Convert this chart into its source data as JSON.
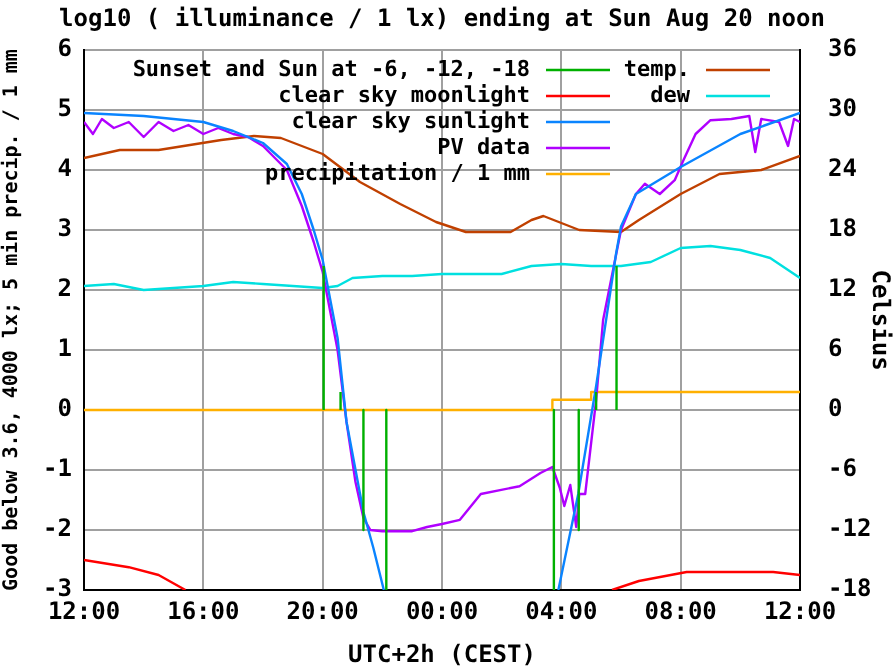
{
  "chart_data": {
    "type": "line",
    "title": "log10 ( illuminance / 1 lx) ending at Sun Aug 20 noon",
    "xlabel": "UTC+2h (CEST)",
    "ylabel": "Good below 3.6, 4000 lx; 5 min precip. / 1 mm",
    "y2label": "Celsius",
    "xlim": [
      "--08-19T12:00",
      "--08-20T12:00"
    ],
    "xticks": [
      {
        "value": "--08-19T12:00",
        "label": "12:00"
      },
      {
        "value": "--08-19T16:00",
        "label": "16:00"
      },
      {
        "value": "--08-19T20:00",
        "label": "20:00"
      },
      {
        "value": "--08-20T00:00",
        "label": "00:00"
      },
      {
        "value": "--08-20T04:00",
        "label": "04:00"
      },
      {
        "value": "--08-20T08:00",
        "label": "08:00"
      },
      {
        "value": "--08-20T12:00",
        "label": "12:00"
      }
    ],
    "ylim": [
      -3,
      6
    ],
    "yticks": [
      -3,
      -2,
      -1,
      0,
      1,
      2,
      3,
      4,
      5,
      6
    ],
    "y2lim": [
      -18,
      36
    ],
    "y2ticks": [
      -18,
      -12,
      -6,
      0,
      6,
      12,
      18,
      24,
      30,
      36
    ],
    "grid": true,
    "legend": "top",
    "marker": "none",
    "series": [
      {
        "name": "Sunset and Sun at -6, -12, -18",
        "color": "#00b000",
        "x": [
          "--08-19T20:02",
          "--08-19T20:02",
          null,
          "--08-19T20:36",
          "--08-19T20:36",
          null,
          "--08-19T21:22",
          "--08-19T21:22",
          null,
          "--08-19T22:08",
          "--08-19T22:08",
          null,
          "--08-20T03:45",
          "--08-20T03:45",
          null,
          "--08-20T04:35",
          "--08-20T04:35",
          null,
          "--08-20T05:10",
          "--08-20T05:10",
          null,
          "--08-20T05:51",
          "--08-20T05:51"
        ],
        "values": [
          0,
          2.4,
          null,
          0,
          0.3,
          null,
          0,
          -2,
          null,
          0,
          -3,
          null,
          0,
          -3,
          null,
          0,
          -2,
          null,
          0,
          0.3,
          null,
          0,
          2.4
        ]
      },
      {
        "name": "clear sky moonlight",
        "color": "#ff0000",
        "x": [
          "--08-19T12:00",
          "--08-19T13:30",
          "--08-19T14:30",
          "--08-19T15:24",
          null,
          "--08-20T05:42",
          "--08-20T06:36",
          "--08-20T08:12",
          "--08-20T11:06",
          "--08-20T12:00"
        ],
        "values": [
          -2.5,
          -2.62,
          -2.75,
          -3,
          null,
          -3,
          -2.85,
          -2.7,
          -2.7,
          -2.75
        ]
      },
      {
        "name": "clear sky sunlight",
        "color": "#0a84ff",
        "x": [
          "--08-19T12:00",
          "--08-19T14:00",
          "--08-19T16:00",
          "--08-19T17:00",
          "--08-19T18:00",
          "--08-19T18:48",
          "--08-19T19:18",
          "--08-19T19:42",
          "--08-19T20:00",
          "--08-19T20:30",
          "--08-19T20:48",
          "--08-19T21:22",
          "--08-19T21:42",
          "--08-19T22:03",
          null,
          "--08-20T03:54",
          "--08-20T04:34",
          "--08-20T05:10",
          "--08-20T05:50",
          "--08-20T06:00",
          "--08-20T06:30",
          "--08-20T08:00",
          "--08-20T10:00",
          "--08-20T12:00"
        ],
        "values": [
          4.95,
          4.9,
          4.8,
          4.65,
          4.45,
          4.1,
          3.6,
          3,
          2.5,
          1.2,
          -0.2,
          -1.7,
          -2.3,
          -3,
          null,
          -3,
          -1.4,
          0.4,
          2.6,
          3.06,
          3.6,
          4.05,
          4.6,
          4.95
        ]
      },
      {
        "name": "PV data",
        "color": "#b000ff",
        "x": [
          "--08-19T12:00",
          "--08-19T12:18",
          "--08-19T12:36",
          "--08-19T13:00",
          "--08-19T13:30",
          "--08-19T14:00",
          "--08-19T14:30",
          "--08-19T15:00",
          "--08-19T15:30",
          "--08-19T16:00",
          "--08-19T16:30",
          "--08-19T17:00",
          "--08-19T17:30",
          "--08-19T18:00",
          "--08-19T18:48",
          "--08-19T19:18",
          "--08-19T19:42",
          "--08-19T20:00",
          "--08-19T20:30",
          "--08-19T20:48",
          "--08-19T21:06",
          "--08-19T21:22",
          "--08-19T21:36",
          "--08-19T22:00",
          "--08-19T23:00",
          "--08-19T23:30",
          "--08-20T00:00",
          "--08-20T00:36",
          "--08-20T01:18",
          "--08-20T02:36",
          "--08-20T03:18",
          "--08-20T03:42",
          "--08-20T03:57",
          "--08-20T04:06",
          "--08-20T04:18",
          "--08-20T04:30",
          "--08-20T04:36",
          "--08-20T04:48",
          "--08-20T05:10",
          "--08-20T05:24",
          "--08-20T05:48",
          "--08-20T06:00",
          "--08-20T06:30",
          "--08-20T06:48",
          "--08-20T07:18",
          "--08-20T07:48",
          "--08-20T08:06",
          "--08-20T08:30",
          "--08-20T09:00",
          "--08-20T09:42",
          "--08-20T10:18",
          "--08-20T10:30",
          "--08-20T10:42",
          "--08-20T11:18",
          "--08-20T11:36",
          "--08-20T11:48",
          "--08-20T12:00"
        ],
        "values": [
          4.8,
          4.6,
          4.85,
          4.7,
          4.8,
          4.55,
          4.8,
          4.65,
          4.75,
          4.6,
          4.7,
          4.6,
          4.55,
          4.4,
          4,
          3.4,
          2.8,
          2.3,
          1,
          -0.2,
          -1.2,
          -1.8,
          -2,
          -2.02,
          -2.02,
          -1.95,
          -1.9,
          -1.83,
          -1.4,
          -1.27,
          -1.05,
          -0.95,
          -1.3,
          -1.6,
          -1.25,
          -1.95,
          -1.4,
          -1.4,
          0.17,
          1.5,
          2.5,
          3,
          3.6,
          3.77,
          3.6,
          3.83,
          4.17,
          4.6,
          4.83,
          4.85,
          4.9,
          4.3,
          4.85,
          4.8,
          4.4,
          4.85,
          4.8
        ]
      },
      {
        "name": "precipitation / 1 mm",
        "color": "#ffb000",
        "x": [
          "--08-19T12:00",
          "--08-20T03:42",
          "--08-20T03:42",
          "--08-20T05:00",
          "--08-20T05:00",
          "--08-20T12:00"
        ],
        "values": [
          0,
          0,
          0.17,
          0.17,
          0.3,
          0.3
        ]
      },
      {
        "name": "temp.",
        "color": "#c04000",
        "axis": "y2",
        "x": [
          "--08-19T12:00",
          "--08-19T13:12",
          "--08-19T14:30",
          "--08-19T16:36",
          "--08-19T17:42",
          "--08-19T18:36",
          "--08-19T20:00",
          "--08-19T21:15",
          "--08-19T22:36",
          "--08-19T23:48",
          "--08-20T00:48",
          "--08-20T02:18",
          "--08-20T03:00",
          "--08-20T03:24",
          "--08-20T04:36",
          "--08-20T06:00",
          "--08-20T06:36",
          "--08-20T08:00",
          "--08-20T09:18",
          "--08-20T10:42",
          "--08-20T12:00"
        ],
        "values": [
          25.2,
          26,
          26,
          27,
          27.4,
          27.2,
          25.6,
          22.8,
          20.6,
          18.8,
          17.8,
          17.8,
          19,
          19.4,
          18,
          17.8,
          19,
          21.6,
          23.6,
          24,
          25.4
        ]
      },
      {
        "name": "dew",
        "color": "#00e0e0",
        "axis": "y2",
        "x": [
          "--08-19T12:00",
          "--08-19T13:00",
          "--08-19T14:00",
          "--08-19T15:00",
          "--08-19T16:00",
          "--08-19T17:00",
          "--08-19T18:00",
          "--08-19T19:00",
          "--08-19T20:00",
          "--08-19T20:30",
          "--08-19T21:00",
          "--08-19T22:00",
          "--08-19T23:00",
          "--08-20T00:00",
          "--08-20T01:00",
          "--08-20T02:00",
          "--08-20T03:00",
          "--08-20T04:00",
          "--08-20T05:00",
          "--08-20T06:00",
          "--08-20T07:00",
          "--08-20T08:00",
          "--08-20T09:00",
          "--08-20T10:00",
          "--08-20T11:00",
          "--08-20T11:30",
          "--08-20T12:00"
        ],
        "values": [
          12.4,
          12.6,
          12,
          12.2,
          12.4,
          12.8,
          12.6,
          12.4,
          12.2,
          12.4,
          13.2,
          13.4,
          13.4,
          13.6,
          13.6,
          13.6,
          14.4,
          14.6,
          14.4,
          14.4,
          14.8,
          16.2,
          16.4,
          16,
          15.2,
          14.2,
          13.2
        ]
      }
    ]
  }
}
